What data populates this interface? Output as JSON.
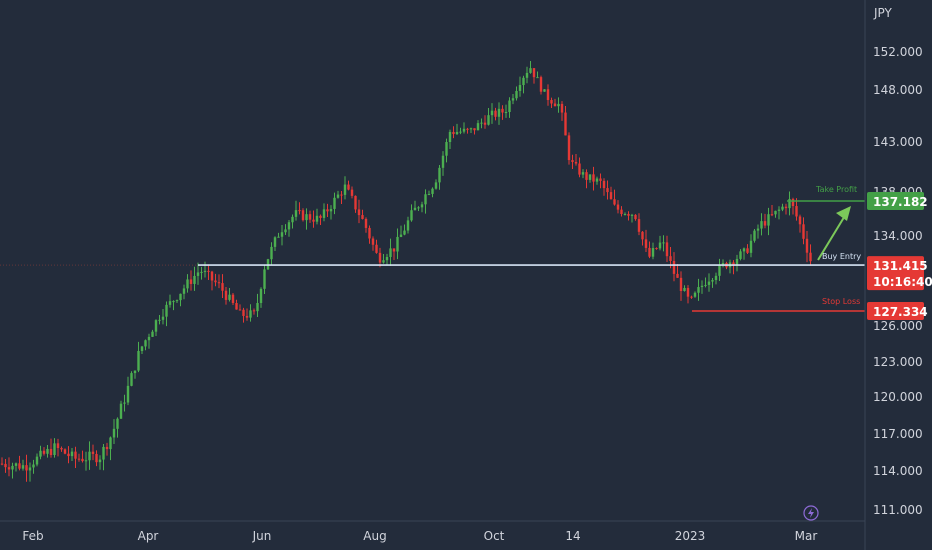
{
  "currency_label": "JPY",
  "colors": {
    "background": "#232c3b",
    "up": "#4caf50",
    "down": "#e53935",
    "entry_line": "#d6e4f5",
    "take_profit": "#43a047",
    "stop_loss": "#e53935",
    "axis_text": "#d1d4dc"
  },
  "chart_data": {
    "type": "candlestick",
    "y_ticks": [
      152,
      148,
      143,
      138,
      134,
      126,
      123,
      120,
      117,
      114,
      111
    ],
    "y_tick_labels": [
      "152.000",
      "148.000",
      "143.000",
      "138.000",
      "134.000",
      "126.000",
      "123.000",
      "120.000",
      "117.000",
      "114.000",
      "111.000"
    ],
    "x_tick_labels": [
      "Feb",
      "Apr",
      "Jun",
      "Aug",
      "Oct",
      "14",
      "2023",
      "Mar"
    ],
    "price_path": [
      [
        0,
        114.6
      ],
      [
        25,
        114.4
      ],
      [
        55,
        115.9
      ],
      [
        75,
        115.0
      ],
      [
        100,
        115.2
      ],
      [
        112,
        117.0
      ],
      [
        125,
        120.0
      ],
      [
        140,
        124.0
      ],
      [
        160,
        127.0
      ],
      [
        185,
        129.5
      ],
      [
        200,
        131.0
      ],
      [
        220,
        129.5
      ],
      [
        240,
        127.0
      ],
      [
        255,
        127.0
      ],
      [
        265,
        131.5
      ],
      [
        280,
        134.5
      ],
      [
        295,
        136.0
      ],
      [
        320,
        135.5
      ],
      [
        345,
        138.5
      ],
      [
        365,
        135.0
      ],
      [
        378,
        132.0
      ],
      [
        395,
        133.0
      ],
      [
        412,
        136.0
      ],
      [
        435,
        139.0
      ],
      [
        450,
        144.0
      ],
      [
        470,
        144.0
      ],
      [
        490,
        145.5
      ],
      [
        505,
        146.0
      ],
      [
        520,
        149.0
      ],
      [
        530,
        150.5
      ],
      [
        545,
        147.5
      ],
      [
        560,
        146.5
      ],
      [
        570,
        141.0
      ],
      [
        585,
        139.5
      ],
      [
        600,
        139.0
      ],
      [
        615,
        136.5
      ],
      [
        635,
        136.0
      ],
      [
        648,
        132.0
      ],
      [
        662,
        133.5
      ],
      [
        675,
        130.5
      ],
      [
        690,
        128.0
      ],
      [
        705,
        130.0
      ],
      [
        725,
        131.5
      ],
      [
        745,
        132.5
      ],
      [
        760,
        135.0
      ],
      [
        775,
        136.0
      ],
      [
        790,
        137.2
      ],
      [
        800,
        135.0
      ],
      [
        812,
        131.4
      ]
    ],
    "take_profit": {
      "label": "Take Profit",
      "value": 137.182,
      "value_label": "137.182"
    },
    "buy_entry": {
      "label": "Buy Entry",
      "value": 131.415,
      "value_label": "131.415",
      "countdown": "10:16:40"
    },
    "stop_loss": {
      "label": "Stop Loss",
      "value": 127.334,
      "value_label": "127.334"
    }
  }
}
